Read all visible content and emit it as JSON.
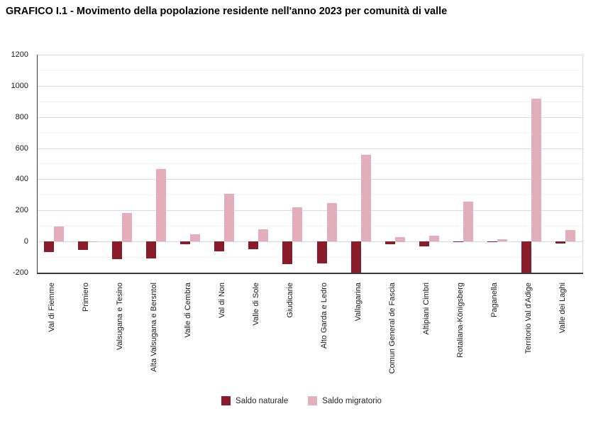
{
  "chart_data": {
    "type": "bar",
    "title": "GRAFICO I.1 - Movimento della popolazione residente nell'anno 2023 per comunità di valle",
    "categories": [
      "Val di Fiemme",
      "Primiero",
      "Valsugana e Tesino",
      "Alta Valsugana e Bersntol",
      "Valle di Cembra",
      "Val di Non",
      "Valle di Sole",
      "Giudicarie",
      "Alto Garda e Ledro",
      "Vallagarina",
      "Comun General de Fascia",
      "Altipiani Cimbri",
      "Rotaliana-Königsberg",
      "Paganella",
      "Territorio Val d'Adige",
      "Valle dei Laghi"
    ],
    "series": [
      {
        "name": "Saldo naturale",
        "color": "#8A1B2B",
        "values": [
          -70,
          -55,
          -115,
          -110,
          -20,
          -65,
          -50,
          -145,
          -140,
          -200,
          -20,
          -30,
          -3,
          -2,
          -200,
          -15
        ]
      },
      {
        "name": "Saldo migratorio",
        "color": "#E1AEBA",
        "values": [
          95,
          -5,
          185,
          465,
          45,
          305,
          78,
          220,
          245,
          555,
          30,
          38,
          255,
          14,
          915,
          75
        ]
      }
    ],
    "xlabel": "",
    "ylabel": "",
    "ylim": [
      -200,
      1200
    ],
    "ytick_interval": 200,
    "minor_grid_interval": 100,
    "yticks": [
      "-200",
      "0",
      "200",
      "400",
      "600",
      "800",
      "1000",
      "1200"
    ],
    "grid": true,
    "legend_position": "bottom",
    "axis_color": "#3C3C3C",
    "major_grid_color": "#DBDBDB",
    "minor_grid_color": "#F1F1F1",
    "plot_border_color": "#D9D9D9"
  }
}
